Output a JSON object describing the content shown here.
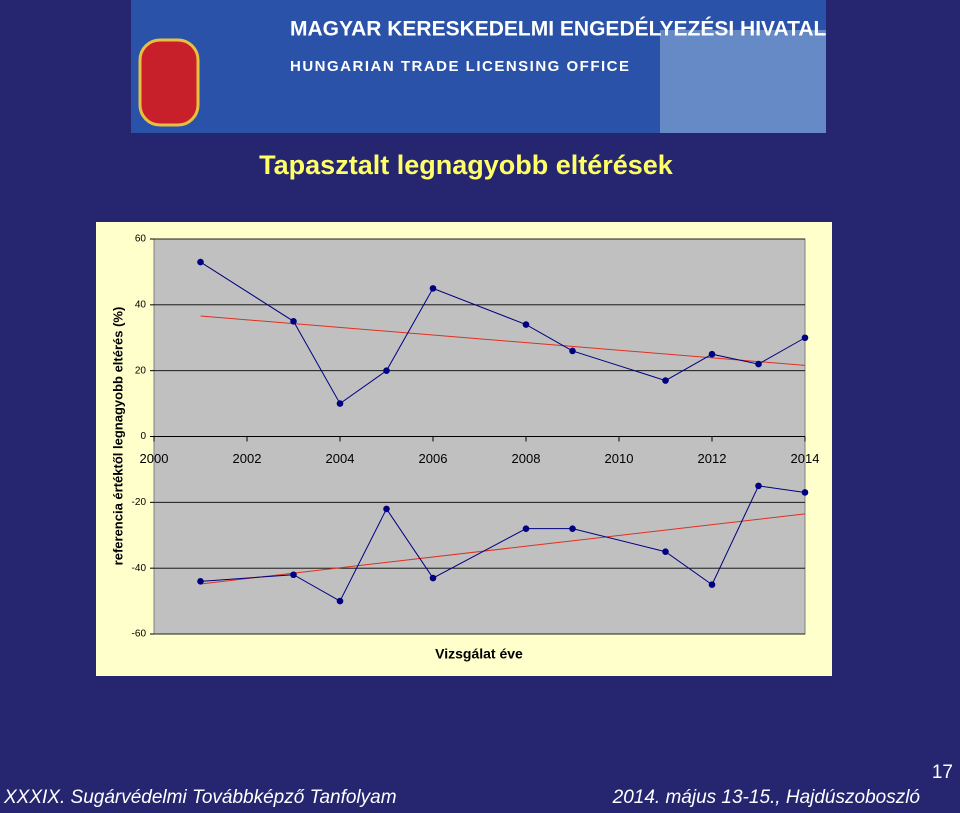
{
  "header": {
    "title": "MAGYAR KERESKEDELMI ENGEDÉLYEZÉSI HIVATAL",
    "subtitle": "HUNGARIAN TRADE LICENSING OFFICE"
  },
  "chart_data": {
    "type": "line",
    "title": "Tapasztalt legnagyobb eltérések",
    "x_label": "Vizsgálat éve",
    "y_label": "referencia értéktől legnagyobb eltérés (%)",
    "x": [
      2001,
      2003,
      2004,
      2005,
      2006,
      2008,
      2009,
      2011,
      2012,
      2013,
      2014
    ],
    "series": [
      {
        "color": "#000080",
        "values": [
          53,
          35,
          10,
          20,
          45,
          34,
          26,
          17,
          25,
          22,
          30
        ]
      },
      {
        "color": "#000080",
        "values": [
          -44,
          -42,
          -50,
          -22,
          -43,
          -28,
          -28,
          -35,
          -45,
          -15,
          -17
        ]
      }
    ],
    "trendlines": [
      {
        "color": "#e03020",
        "x": [
          2001,
          2014
        ],
        "values": [
          36.6,
          21.6
        ]
      },
      {
        "color": "#e03020",
        "x": [
          2001,
          2014
        ],
        "values": [
          -44.8,
          -23.5
        ]
      }
    ],
    "xlim": [
      2000,
      2014
    ],
    "xticks": [
      2000,
      2002,
      2004,
      2006,
      2008,
      2010,
      2012,
      2014
    ],
    "ylim": [
      -60,
      60
    ],
    "yticks": [
      -60,
      -40,
      -20,
      0,
      20,
      40,
      60
    ],
    "grid": true
  },
  "footer": {
    "left": "XXXIX. Sugárvédelmi Továbbképző Tanfolyam",
    "right": "2014. május 13-15., Hajdúszoboszló",
    "page": "17"
  }
}
